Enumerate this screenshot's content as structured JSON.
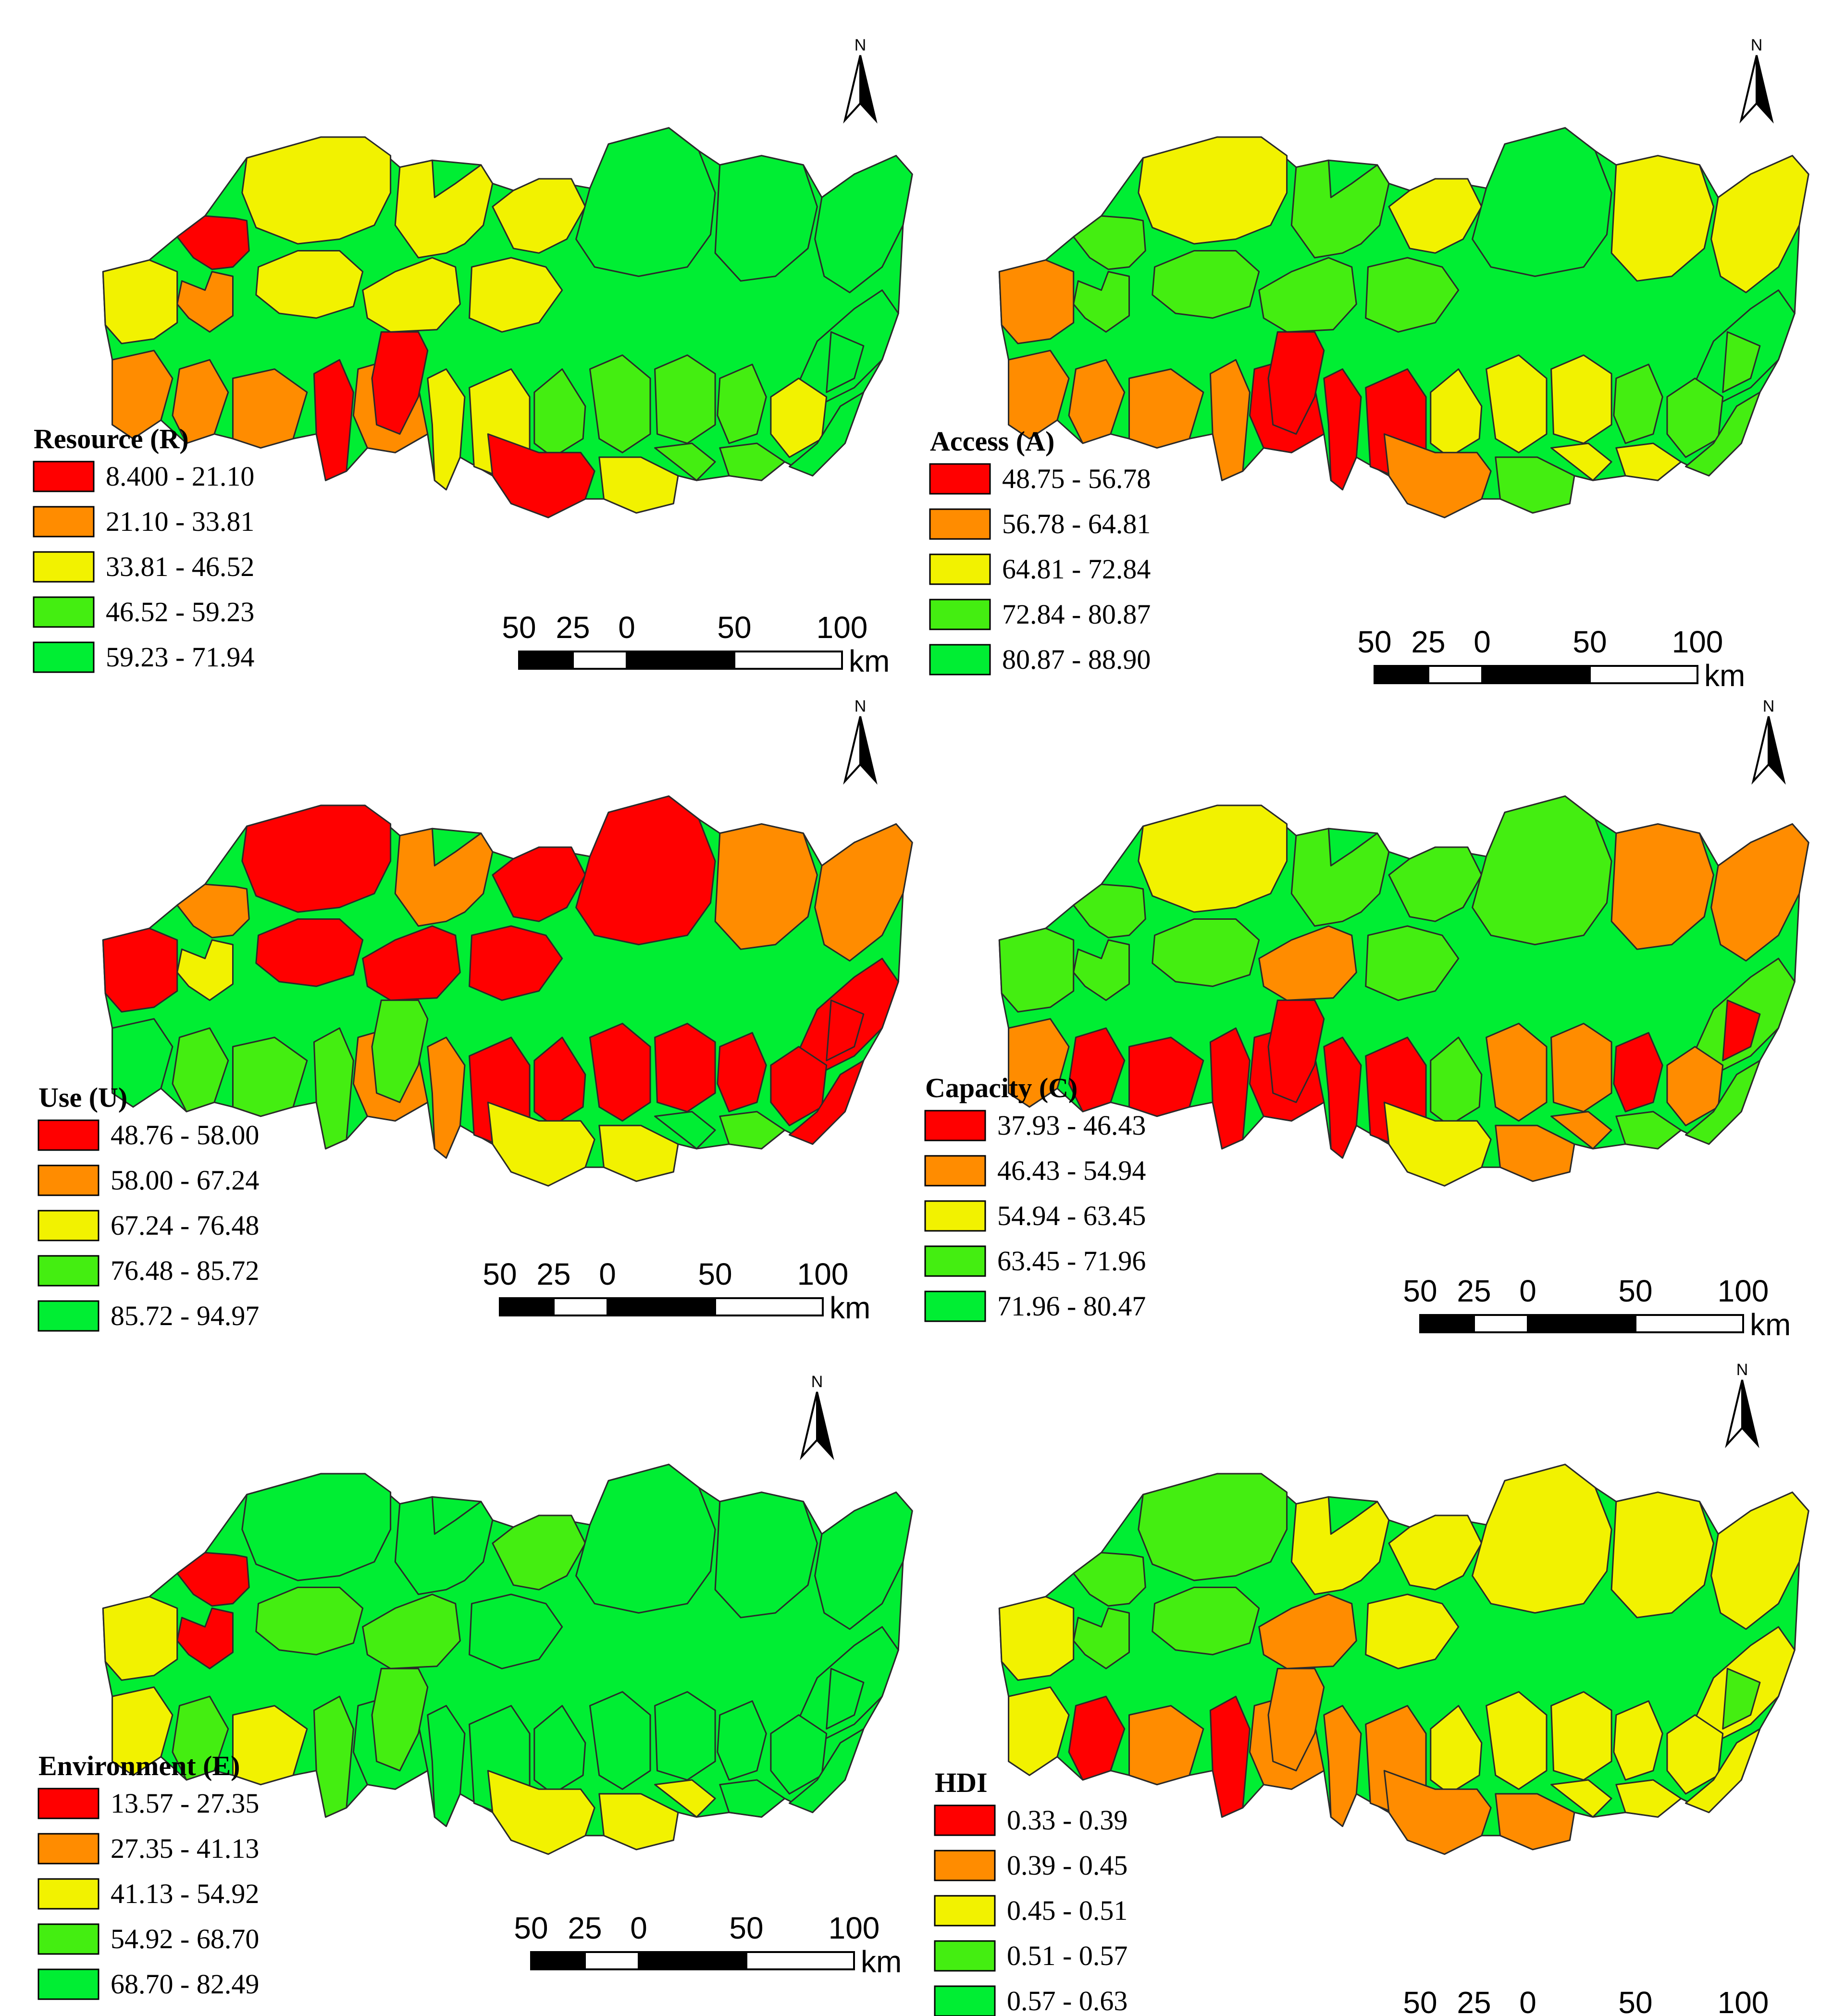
{
  "colors": {
    "c1": "#ff0000",
    "c2": "#ff8c00",
    "c3": "#f2f200",
    "c4": "#44ee11",
    "c5": "#00ee33"
  },
  "scale_bar": {
    "ticks": [
      "50",
      "25",
      "0",
      "50",
      "100"
    ],
    "unit": "km"
  },
  "north_arrow": {
    "letter": "N"
  },
  "panels": [
    {
      "id": "resource",
      "legend_title": "Resource (R)",
      "classes": [
        "8.400 - 21.10",
        "21.10 - 33.81",
        "33.81 - 46.52",
        "46.52 - 59.23",
        "59.23 - 71.94"
      ],
      "region_classes": [
        1,
        2,
        3,
        3,
        3,
        3,
        3,
        3,
        3,
        5,
        5,
        5,
        5,
        2,
        2,
        2,
        1,
        2,
        3,
        3,
        4,
        4,
        4,
        4,
        3,
        5,
        1,
        1,
        3,
        4,
        4,
        5
      ]
    },
    {
      "id": "access",
      "legend_title": "Access (A)",
      "classes": [
        "48.75 - 56.78",
        "56.78 - 64.81",
        "64.81 - 72.84",
        "72.84 - 80.87",
        "80.87 - 88.90"
      ],
      "region_classes": [
        4,
        4,
        2,
        3,
        4,
        4,
        4,
        4,
        3,
        5,
        3,
        3,
        5,
        2,
        2,
        2,
        2,
        1,
        1,
        1,
        3,
        3,
        3,
        4,
        4,
        4,
        1,
        2,
        4,
        3,
        3,
        4
      ]
    },
    {
      "id": "use",
      "legend_title": "Use (U)",
      "classes": [
        "48.76 - 58.00",
        "58.00 - 67.24",
        "67.24 - 76.48",
        "76.48 - 85.72",
        "85.72 - 94.97"
      ],
      "region_classes": [
        2,
        3,
        1,
        1,
        1,
        1,
        2,
        1,
        1,
        1,
        2,
        2,
        1,
        5,
        4,
        4,
        4,
        2,
        2,
        1,
        1,
        1,
        1,
        1,
        1,
        1,
        4,
        3,
        3,
        5,
        4,
        1
      ]
    },
    {
      "id": "capacity",
      "legend_title": "Capacity (C)",
      "classes": [
        "37.93 - 46.43",
        "46.43 - 54.94",
        "54.94 - 63.45",
        "63.45 - 71.96",
        "71.96 - 80.47"
      ],
      "region_classes": [
        4,
        4,
        4,
        3,
        4,
        2,
        4,
        4,
        4,
        4,
        2,
        2,
        4,
        2,
        1,
        1,
        1,
        1,
        1,
        1,
        4,
        2,
        2,
        1,
        2,
        1,
        1,
        3,
        2,
        2,
        4,
        4
      ]
    },
    {
      "id": "environment",
      "legend_title": "Environment (E)",
      "classes": [
        "13.57 - 27.35",
        "27.35 - 41.13",
        "41.13 - 54.92",
        "54.92 - 68.70",
        "68.70 - 82.49"
      ],
      "region_classes": [
        1,
        1,
        3,
        5,
        4,
        4,
        5,
        5,
        4,
        5,
        5,
        5,
        5,
        3,
        4,
        3,
        4,
        5,
        5,
        5,
        5,
        5,
        5,
        5,
        5,
        5,
        4,
        3,
        3,
        3,
        5,
        5
      ]
    },
    {
      "id": "hdi",
      "legend_title": "HDI",
      "classes": [
        "0.33 - 0.39",
        "0.39 - 0.45",
        "0.45 - 0.51",
        "0.51 - 0.57",
        "0.57 - 0.63"
      ],
      "region_classes": [
        4,
        4,
        3,
        4,
        4,
        2,
        3,
        3,
        3,
        3,
        3,
        3,
        3,
        3,
        1,
        2,
        1,
        2,
        2,
        2,
        3,
        3,
        3,
        3,
        3,
        4,
        2,
        2,
        2,
        3,
        3,
        3
      ]
    }
  ]
}
